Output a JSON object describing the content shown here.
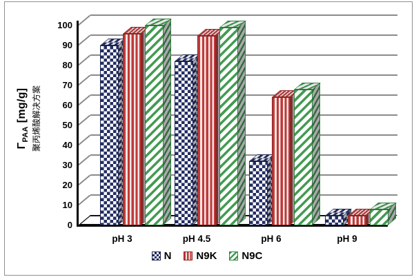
{
  "chart_data": {
    "type": "bar",
    "title": "",
    "ylabel": {
      "symbol": "Γ",
      "sub": "PAA",
      "units": "[mg/g]",
      "note": "聚丙烯酸解决方案"
    },
    "xlabel": "",
    "categories": [
      "pH 3",
      "pH 4.5",
      "pH 6",
      "pH 9"
    ],
    "series": [
      {
        "name": "N",
        "pattern": "check",
        "color": "#232d63",
        "edge": "#1b2350",
        "values": [
          90,
          82,
          32,
          5
        ]
      },
      {
        "name": "N9K",
        "pattern": "vstripe",
        "color": "#bf3a39",
        "edge": "#8f2423",
        "values": [
          96,
          95,
          64,
          5
        ]
      },
      {
        "name": "N9C",
        "pattern": "dstripe",
        "color": "#449b52",
        "edge": "#2e7d3a",
        "values": [
          100,
          99,
          68,
          8
        ]
      }
    ],
    "ylim": [
      0,
      100
    ],
    "yticks": [
      "0",
      "10",
      "20",
      "30",
      "40",
      "50",
      "60",
      "70",
      "80",
      "90",
      "100"
    ],
    "grid": "horizontal-3d-backwall",
    "legend_position": "bottom-center",
    "style": "pseudo-3d bars",
    "grid_color": "#8a8a8a",
    "axis_color": "#000000"
  }
}
